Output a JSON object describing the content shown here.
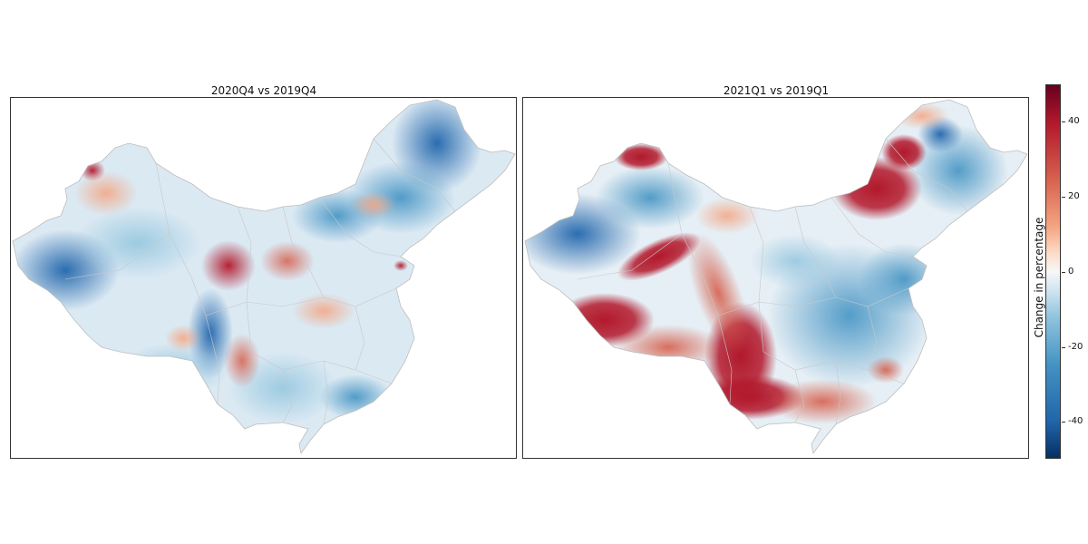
{
  "panels": [
    {
      "title": "2020Q4 vs 2019Q4"
    },
    {
      "title": "2021Q1 vs 2019Q1"
    }
  ],
  "colorbar": {
    "label": "Change in percentage",
    "ticks": [
      "40",
      "20",
      "0",
      "-20",
      "-40"
    ],
    "range": [
      -50,
      50
    ],
    "colors": {
      "high": "#b2182b",
      "mid": "#f7f7f7",
      "low": "#2166ac"
    }
  },
  "colors": {
    "strong_red": "#b2182b",
    "red": "#d6604d",
    "light_red": "#f4a582",
    "neutral": "#f7f7f7",
    "light_blue": "#92c5de",
    "blue": "#4393c3",
    "strong_blue": "#2166ac",
    "boundary": "#bdbdbd"
  }
}
